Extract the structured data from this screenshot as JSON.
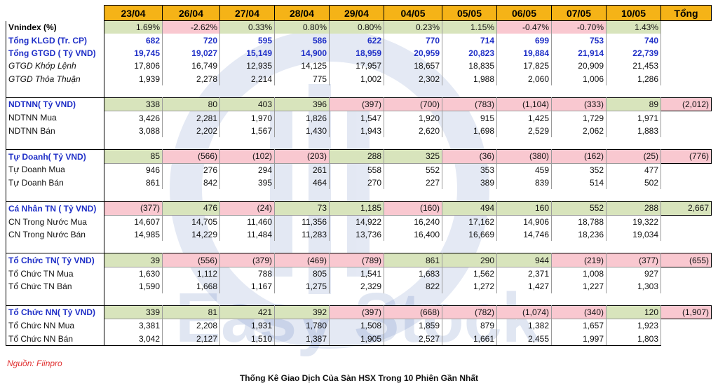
{
  "table": {
    "dates": [
      "23/04",
      "26/04",
      "27/04",
      "28/04",
      "29/04",
      "04/05",
      "05/05",
      "06/05",
      "07/05",
      "10/05"
    ],
    "total_header": "Tổng",
    "rows": [
      {
        "label": "Vnindex (%)",
        "kind": "index",
        "values": [
          "1.69%",
          "-2.62%",
          "0.33%",
          "0.80%",
          "0.80%",
          "0.23%",
          "1.15%",
          "-0.47%",
          "-0.70%",
          "1.43%"
        ],
        "total": "",
        "colored": true
      },
      {
        "label": "Tổng KLGD (Tr. CP)",
        "kind": "main",
        "values": [
          "682",
          "720",
          "595",
          "586",
          "622",
          "770",
          "714",
          "699",
          "753",
          "740"
        ],
        "total": ""
      },
      {
        "label": "Tổng GTGD ( Tỷ VND)",
        "kind": "main",
        "values": [
          "19,745",
          "19,027",
          "15,149",
          "14,900",
          "18,959",
          "20,959",
          "20,823",
          "19,884",
          "21,914",
          "22,739"
        ],
        "total": ""
      },
      {
        "label": "GTGD Khớp Lệnh",
        "kind": "italic",
        "values": [
          "17,806",
          "16,749",
          "12,935",
          "14,125",
          "17,957",
          "18,657",
          "18,835",
          "17,825",
          "20,909",
          "21,453"
        ],
        "total": ""
      },
      {
        "label": "GTGD Thỏa Thuận",
        "kind": "italic",
        "values": [
          "1,939",
          "2,278",
          "2,214",
          "775",
          "1,002",
          "2,302",
          "1,988",
          "2,060",
          "1,006",
          "1,286"
        ],
        "total": ""
      },
      {
        "label": "",
        "kind": "spacer",
        "values": [],
        "total": ""
      },
      {
        "label": "NDTNN( Tỷ VND)",
        "kind": "group",
        "values": [
          "338",
          "80",
          "403",
          "396",
          "(397)",
          "(700)",
          "(783)",
          "(1,104)",
          "(333)",
          "89"
        ],
        "total": "(2,012)"
      },
      {
        "label": "NDTNN Mua",
        "kind": "plain",
        "values": [
          "3,426",
          "2,281",
          "1,970",
          "1,826",
          "1,547",
          "1,920",
          "915",
          "1,425",
          "1,729",
          "1,971"
        ],
        "total": ""
      },
      {
        "label": "NDTNN Bán",
        "kind": "plain",
        "values": [
          "3,088",
          "2,202",
          "1,567",
          "1,430",
          "1,943",
          "2,620",
          "1,698",
          "2,529",
          "2,062",
          "1,883"
        ],
        "total": ""
      },
      {
        "label": "",
        "kind": "spacer",
        "values": [],
        "total": ""
      },
      {
        "label": "Tự Doanh( Tỷ VND)",
        "kind": "group",
        "values": [
          "85",
          "(566)",
          "(102)",
          "(203)",
          "288",
          "325",
          "(36)",
          "(380)",
          "(162)",
          "(25)"
        ],
        "total": "(776)"
      },
      {
        "label": "Tự Doanh Mua",
        "kind": "plain",
        "values": [
          "946",
          "276",
          "294",
          "261",
          "558",
          "552",
          "353",
          "459",
          "352",
          "477"
        ],
        "total": ""
      },
      {
        "label": "Tự Doanh Bán",
        "kind": "plain",
        "values": [
          "861",
          "842",
          "395",
          "464",
          "270",
          "227",
          "389",
          "839",
          "514",
          "502"
        ],
        "total": ""
      },
      {
        "label": "",
        "kind": "spacer",
        "values": [],
        "total": ""
      },
      {
        "label": "Cá Nhân TN ( Tỷ VND)",
        "kind": "group",
        "values": [
          "(377)",
          "476",
          "(24)",
          "73",
          "1,185",
          "(160)",
          "494",
          "160",
          "552",
          "288"
        ],
        "total": "2,667"
      },
      {
        "label": "CN Trong Nước Mua",
        "kind": "plain",
        "values": [
          "14,607",
          "14,705",
          "11,460",
          "11,356",
          "14,922",
          "16,240",
          "17,162",
          "14,906",
          "18,788",
          "19,322"
        ],
        "total": ""
      },
      {
        "label": "CN Trong Nước Bán",
        "kind": "plain",
        "values": [
          "14,985",
          "14,229",
          "11,484",
          "11,283",
          "13,736",
          "16,400",
          "16,669",
          "14,746",
          "18,236",
          "19,034"
        ],
        "total": ""
      },
      {
        "label": "",
        "kind": "spacer",
        "values": [],
        "total": ""
      },
      {
        "label": "Tổ Chức TN( Tỷ VND)",
        "kind": "group",
        "values": [
          "39",
          "(556)",
          "(379)",
          "(469)",
          "(789)",
          "861",
          "290",
          "944",
          "(219)",
          "(377)"
        ],
        "total": "(655)"
      },
      {
        "label": "Tổ Chức TN Mua",
        "kind": "plain",
        "values": [
          "1,630",
          "1,112",
          "788",
          "805",
          "1,541",
          "1,683",
          "1,562",
          "2,371",
          "1,008",
          "927"
        ],
        "total": ""
      },
      {
        "label": "Tổ Chức TN Bán",
        "kind": "plain",
        "values": [
          "1,590",
          "1,668",
          "1,167",
          "1,275",
          "2,329",
          "822",
          "1,272",
          "1,427",
          "1,227",
          "1,303"
        ],
        "total": ""
      },
      {
        "label": "",
        "kind": "spacer",
        "values": [],
        "total": ""
      },
      {
        "label": "Tổ Chức NN( Tỷ VND)",
        "kind": "group",
        "values": [
          "339",
          "81",
          "421",
          "392",
          "(397)",
          "(668)",
          "(782)",
          "(1,074)",
          "(340)",
          "120"
        ],
        "total": "(1,907)"
      },
      {
        "label": "Tổ Chức NN Mua",
        "kind": "plain",
        "values": [
          "3,381",
          "2,208",
          "1,931",
          "1,780",
          "1,508",
          "1,859",
          "879",
          "1,382",
          "1,657",
          "1,923"
        ],
        "total": ""
      },
      {
        "label": "Tổ Chức NN Bán",
        "kind": "plain",
        "values": [
          "3,042",
          "2,127",
          "1,510",
          "1,387",
          "1,905",
          "2,527",
          "1,661",
          "2,455",
          "1,997",
          "1,803"
        ],
        "total": ""
      }
    ]
  },
  "watermark": {
    "text": "Easy Stock"
  },
  "source_note": "Nguồn: Fiinpro",
  "caption": "Thống Kê Giao Dịch Của Sàn HSX Trong 10 Phiên Gần Nhất",
  "colors": {
    "header_bg": "#f5b317",
    "positive_bg": "#d8e4bc",
    "negative_bg": "#f9c8d0",
    "group_label": "#1f2fc7",
    "source_note": "#e03030"
  }
}
